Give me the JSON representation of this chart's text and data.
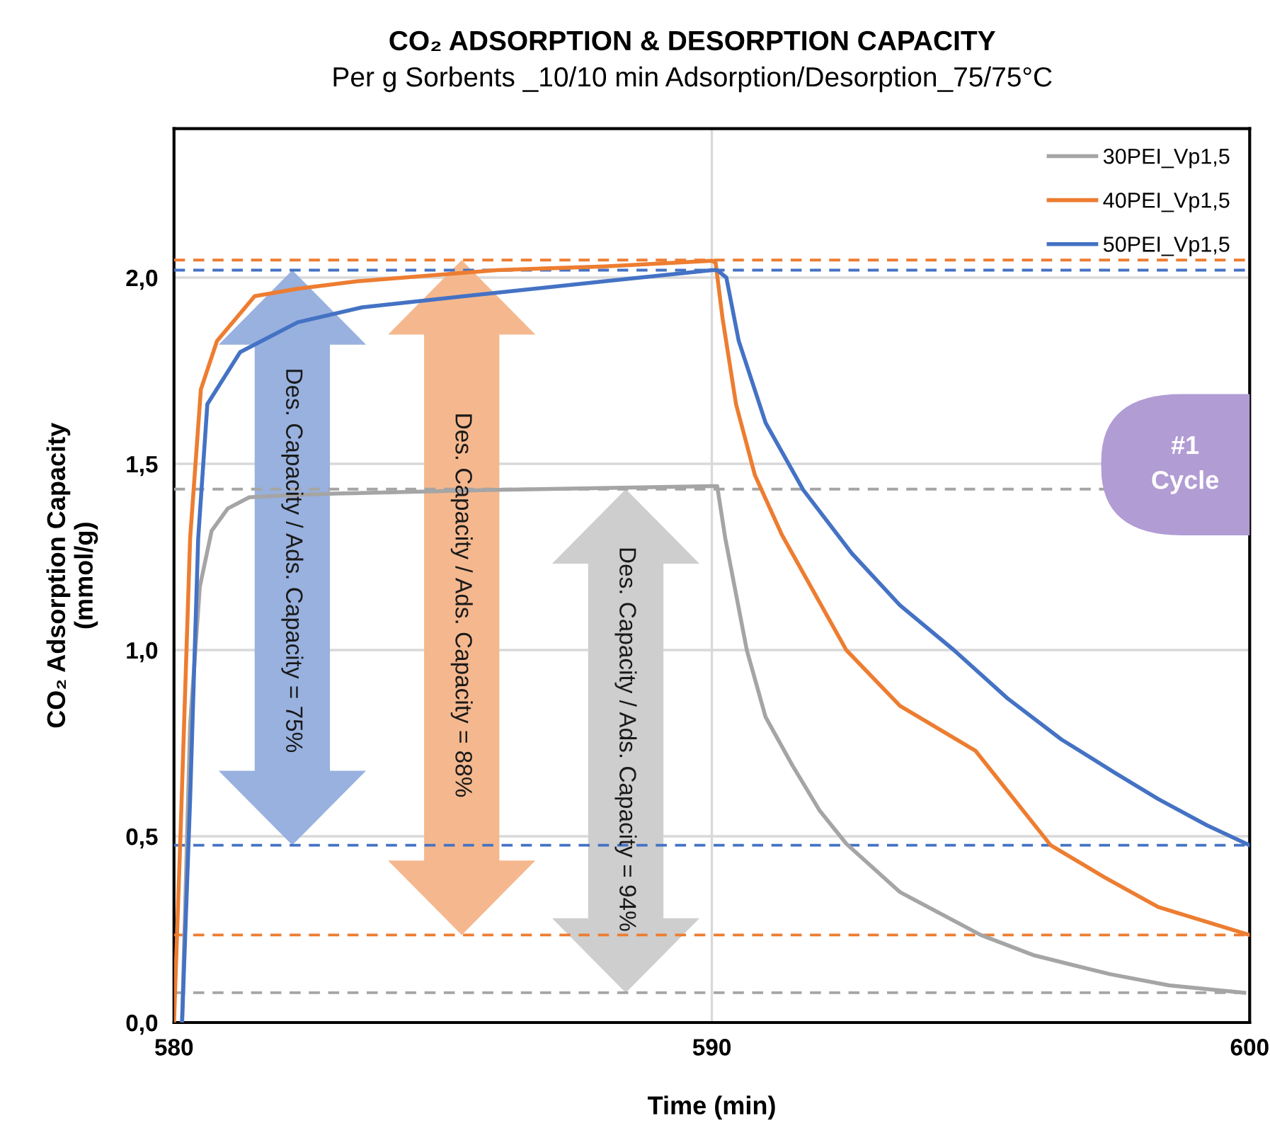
{
  "chart_data": {
    "type": "line",
    "title": "CO₂ ADSORPTION & DESORPTION CAPACITY",
    "subtitle": "Per g Sorbents _10/10 min Adsorption/Desorption_75/75°C",
    "xlabel": "Time (min)",
    "ylabel": "CO₂ Adsorption Capacity\n(mmol/g)",
    "xlim": [
      580,
      600
    ],
    "xticks": [
      580,
      590,
      600
    ],
    "ylim": [
      0,
      2.4
    ],
    "yticks": [
      {
        "value": 0,
        "label": "0,0"
      },
      {
        "value": 0.5,
        "label": "0,5"
      },
      {
        "value": 1,
        "label": "1,0"
      },
      {
        "value": 1.5,
        "label": "1,5"
      },
      {
        "value": 2,
        "label": "2,0"
      }
    ],
    "grid": true,
    "legend": "top right",
    "marker": "none",
    "line_style": "solid",
    "series": [
      {
        "name": "30PEI_Vp1,5",
        "color": "#a5a5a5",
        "x": [
          580.15,
          580.3,
          580.48,
          580.7,
          581.0,
          581.4,
          582.0,
          583.0,
          586.0,
          590.0,
          590.1,
          590.25,
          590.65,
          591.0,
          591.5,
          592.0,
          592.5,
          593.5,
          595.0,
          596.0,
          597.4,
          598.5,
          599.9
        ],
        "values": [
          0,
          0.8,
          1.17,
          1.32,
          1.38,
          1.41,
          1.415,
          1.42,
          1.43,
          1.44,
          1.44,
          1.3,
          1.0,
          0.82,
          0.69,
          0.57,
          0.48,
          0.35,
          0.235,
          0.18,
          0.13,
          0.1,
          0.08
        ]
      },
      {
        "name": "40PEI_Vp1,5",
        "color": "#ed7d31",
        "x": [
          580.0,
          580.12,
          580.3,
          580.5,
          580.8,
          581.5,
          582.3,
          583.4,
          586.0,
          588.0,
          590.0,
          590.07,
          590.2,
          590.45,
          590.8,
          591.3,
          592.5,
          593.5,
          594.9,
          596.3,
          597.3,
          598.3,
          600.0
        ],
        "values": [
          0,
          0.5,
          1.3,
          1.7,
          1.83,
          1.95,
          1.97,
          1.99,
          2.02,
          2.03,
          2.045,
          2.04,
          1.89,
          1.66,
          1.47,
          1.31,
          1.0,
          0.85,
          0.73,
          0.476,
          0.39,
          0.31,
          0.235
        ]
      },
      {
        "name": "50PEI_Vp1,5",
        "color": "#4472c4",
        "x": [
          580.15,
          580.3,
          580.45,
          580.62,
          581.23,
          582.3,
          583.5,
          585.4,
          588.0,
          590.0,
          590.1,
          590.27,
          590.5,
          591.0,
          591.7,
          592.6,
          593.5,
          594.5,
          595.5,
          596.5,
          597.5,
          598.3,
          599.2,
          600.0
        ],
        "values": [
          0,
          0.6,
          1.3,
          1.66,
          1.8,
          1.88,
          1.92,
          1.95,
          1.99,
          2.02,
          2.02,
          2.0,
          1.83,
          1.61,
          1.43,
          1.26,
          1.12,
          1.0,
          0.87,
          0.76,
          0.67,
          0.6,
          0.53,
          0.476
        ]
      }
    ],
    "ref_lines": [
      {
        "axis": "y",
        "value": 2.02,
        "color": "#4472c4",
        "line_style": "dashed"
      },
      {
        "axis": "y",
        "value": 2.047,
        "color": "#ed7d31",
        "line_style": "dashed"
      },
      {
        "axis": "y",
        "value": 1.432,
        "color": "#a5a5a5",
        "line_style": "dashed"
      },
      {
        "axis": "y",
        "value": 0.476,
        "color": "#4472c4",
        "line_style": "dashed"
      },
      {
        "axis": "y",
        "value": 0.235,
        "color": "#ed7d31",
        "line_style": "dashed"
      },
      {
        "axis": "y",
        "value": 0.08,
        "color": "#a5a5a5",
        "line_style": "dashed"
      }
    ],
    "annotations": [
      "Des. Capacity / Ads. Capacity = 75%",
      "Des. Capacity / Ads. Capacity = 88%",
      "Des. Capacity / Ads. Capacity = 94%",
      "#1\nCycle"
    ]
  }
}
